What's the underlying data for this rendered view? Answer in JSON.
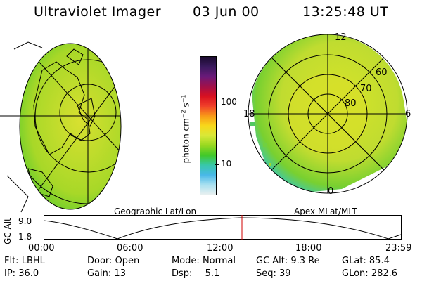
{
  "header": {
    "instrument": "Ultraviolet Imager",
    "date": "03 Jun 00",
    "time": "13:25:48 UT"
  },
  "colorbar": {
    "unit_label": "photon cm",
    "unit_exp1": "−2",
    "unit_mid": "s",
    "unit_exp2": "−1",
    "ticks": [
      "100",
      "10"
    ],
    "colors": [
      "#1a0a2e",
      "#3a1a5e",
      "#6a1a7a",
      "#a0104a",
      "#d81020",
      "#f0402a",
      "#f89a18",
      "#f8d81a",
      "#d8e838",
      "#98d820",
      "#40c828",
      "#38c8a8",
      "#48b8e8",
      "#a8e0f0",
      "#e8f0f0"
    ]
  },
  "left_panel": {
    "label": "Geographic Lat/Lon"
  },
  "right_panel": {
    "label": "Apex MLat/MLT",
    "lat_labels": [
      "60",
      "70",
      "80"
    ],
    "mlt_labels": [
      "12",
      "18",
      "6",
      "0"
    ]
  },
  "altitude_plot": {
    "ylabel": "GC Alt",
    "y_ticks": [
      "9.0",
      "1.8"
    ],
    "x_ticks": [
      "00:00",
      "06:00",
      "12:00",
      "18:00",
      "23:59"
    ],
    "marker_color": "#d00000"
  },
  "info": {
    "flt_label": "Flt:",
    "flt_value": "LBHL",
    "ip_label": "IP:",
    "ip_value": "36.0",
    "door_label": "Door:",
    "door_value": "Open",
    "gain_label": "Gain:",
    "gain_value": "13",
    "mode_label": "Mode:",
    "mode_value": "Normal",
    "dsp_label": "Dsp:",
    "dsp_value": "5.1",
    "gcalt_label": "GC Alt:",
    "gcalt_value": "9.3 Re",
    "seq_label": "Seq:",
    "seq_value": "39",
    "glat_label": "GLat:",
    "glat_value": "85.4",
    "glon_label": "GLon:",
    "glon_value": "282.6"
  }
}
